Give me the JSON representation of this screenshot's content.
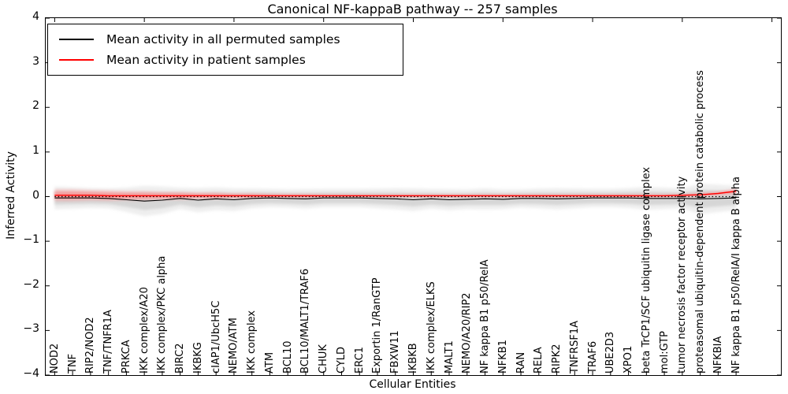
{
  "chart_data": {
    "type": "line",
    "title": "Canonical NF-kappaB pathway -- 257 samples",
    "xlabel": "Cellular Entities",
    "ylabel": "Inferred Activity",
    "ylim": [
      -4,
      4
    ],
    "xlim": [
      -0.5,
      40.5
    ],
    "yticks": [
      4,
      3,
      2,
      1,
      0,
      -1,
      -2,
      -3,
      -4
    ],
    "top_xticks": [
      0,
      5,
      10,
      15,
      20,
      25,
      30,
      35,
      40
    ],
    "grid": false,
    "legend_position": "upper left",
    "zero_line": {
      "style": "dotted",
      "color": "#000000",
      "y": 0
    },
    "categories": [
      "NOD2",
      "TNF",
      "RIP2/NOD2",
      "TNF/TNFR1A",
      "PRKCA",
      "IKK complex/A20",
      "IKK complex/PKC alpha",
      "BIRC2",
      "IKBKG",
      "cIAP1/UbcH5C",
      "NEMO/ATM",
      "IKK complex",
      "ATM",
      "BCL10",
      "BCL10/MALT1/TRAF6",
      "CHUK",
      "CYLD",
      "ERC1",
      "Exportin 1/RanGTP",
      "FBXW11",
      "IKBKB",
      "IKK complex/ELKS",
      "MALT1",
      "NEMO/A20/RIP2",
      "NF kappa B1 p50/RelA",
      "NFKB1",
      "RAN",
      "RELA",
      "RIPK2",
      "TNFRSF1A",
      "TRAF6",
      "UBE2D3",
      "XPO1",
      "beta TrCP1/SCF ubiquitin ligase complex",
      "mol:GTP",
      "tumor necrosis factor receptor activity",
      "proteasomal ubiquitin-dependent protein catabolic process",
      "NFKBIA",
      "NF kappa B1 p50/RelA/I kappa B alpha"
    ],
    "series": [
      {
        "name": "Mean activity in all permuted samples",
        "color": "#000000",
        "values": [
          -0.03,
          -0.03,
          -0.03,
          -0.04,
          -0.07,
          -0.1,
          -0.08,
          -0.04,
          -0.08,
          -0.05,
          -0.07,
          -0.04,
          -0.03,
          -0.04,
          -0.05,
          -0.03,
          -0.03,
          -0.03,
          -0.04,
          -0.05,
          -0.07,
          -0.05,
          -0.07,
          -0.06,
          -0.05,
          -0.06,
          -0.04,
          -0.04,
          -0.05,
          -0.04,
          -0.03,
          -0.03,
          -0.03,
          -0.04,
          -0.04,
          -0.04,
          -0.05,
          -0.04,
          -0.03
        ]
      },
      {
        "name": "Mean activity in patient samples",
        "color": "#ff0000",
        "values": [
          0.03,
          0.03,
          0.03,
          0.02,
          0.02,
          0.02,
          0.02,
          0.02,
          0.02,
          0.02,
          0.02,
          0.02,
          0.02,
          0.02,
          0.02,
          0.02,
          0.02,
          0.02,
          0.02,
          0.02,
          0.02,
          0.02,
          0.02,
          0.02,
          0.02,
          0.02,
          0.02,
          0.02,
          0.02,
          0.02,
          0.02,
          0.02,
          0.02,
          0.02,
          0.02,
          0.03,
          0.04,
          0.07,
          0.12
        ]
      }
    ],
    "bands": [
      {
        "name": "permuted-envelope",
        "color": "#c9c9c9",
        "center_series": 0,
        "halfwidths": [
          0.15,
          0.14,
          0.13,
          0.13,
          0.16,
          0.2,
          0.18,
          0.14,
          0.16,
          0.15,
          0.15,
          0.13,
          0.12,
          0.12,
          0.13,
          0.12,
          0.12,
          0.12,
          0.13,
          0.14,
          0.15,
          0.13,
          0.14,
          0.13,
          0.14,
          0.13,
          0.12,
          0.13,
          0.14,
          0.13,
          0.12,
          0.12,
          0.13,
          0.15,
          0.14,
          0.13,
          0.2,
          0.18,
          0.16
        ]
      },
      {
        "name": "patient-envelope",
        "color": "#ff8a8a",
        "center_series": 1,
        "halfwidths": [
          0.08,
          0.08,
          0.07,
          0.07,
          0.06,
          0.06,
          0.05,
          0.05,
          0.04,
          0.04,
          0.03,
          0.03,
          0.02,
          0.02,
          0.02,
          0.015,
          0.015,
          0.015,
          0.015,
          0.015,
          0.015,
          0.015,
          0.015,
          0.015,
          0.015,
          0.015,
          0.015,
          0.015,
          0.015,
          0.015,
          0.015,
          0.015,
          0.015,
          0.015,
          0.015,
          0.015,
          0.02,
          0.02,
          0.03
        ]
      }
    ]
  }
}
